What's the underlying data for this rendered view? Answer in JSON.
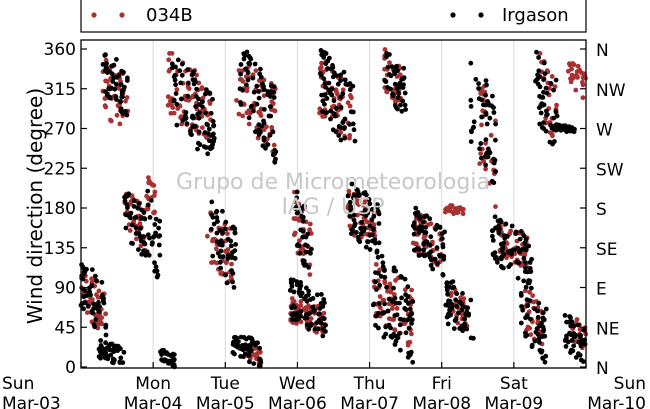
{
  "chart_data": {
    "type": "scatter",
    "ylabel": "Wind direction (degree)",
    "xlabel": "",
    "ylim": [
      0,
      365
    ],
    "yticks": [
      0,
      45,
      90,
      135,
      180,
      225,
      270,
      315,
      360
    ],
    "right_tick_labels": [
      "N",
      "NE",
      "E",
      "SE",
      "S",
      "SW",
      "W",
      "NW",
      "N"
    ],
    "x_tick_labels": [
      {
        "day": "Sun",
        "date": "Mar-03"
      },
      {
        "day": "Mon",
        "date": "Mar-04"
      },
      {
        "day": "Tue",
        "date": "Mar-05"
      },
      {
        "day": "Wed",
        "date": "Mar-06"
      },
      {
        "day": "Thu",
        "date": "Mar-07"
      },
      {
        "day": "Fri",
        "date": "Mar-08"
      },
      {
        "day": "Sat",
        "date": "Mar-09"
      },
      {
        "day": "Sun",
        "date": "Mar-10"
      }
    ],
    "xlim_days": [
      0,
      7
    ],
    "grid": "vertical",
    "legend_placement": "top",
    "watermark": [
      "Grupo de Micrometeorologia",
      "IAG / USP"
    ],
    "series": [
      {
        "name": "034B",
        "color": "#a83232",
        "clusters": [
          {
            "x": [
              0.0,
              0.35
            ],
            "y": [
              35,
              110
            ]
          },
          {
            "x": [
              0.3,
              0.65
            ],
            "y": [
              255,
              355
            ]
          },
          {
            "x": [
              0.6,
              0.9
            ],
            "y": [
              130,
              200
            ]
          },
          {
            "x": [
              0.9,
              1.05
            ],
            "y": [
              160,
              220
            ]
          },
          {
            "x": [
              1.2,
              1.8
            ],
            "y": [
              250,
              355
            ]
          },
          {
            "x": [
              1.75,
              2.1
            ],
            "y": [
              90,
              185
            ]
          },
          {
            "x": [
              2.15,
              2.7
            ],
            "y": [
              240,
              350
            ]
          },
          {
            "x": [
              2.3,
              2.5
            ],
            "y": [
              0,
              30
            ]
          },
          {
            "x": [
              2.95,
              3.2
            ],
            "y": [
              100,
              200
            ]
          },
          {
            "x": [
              2.9,
              3.4
            ],
            "y": [
              35,
              80
            ]
          },
          {
            "x": [
              3.3,
              3.75
            ],
            "y": [
              250,
              350
            ]
          },
          {
            "x": [
              3.7,
              4.1
            ],
            "y": [
              130,
              200
            ]
          },
          {
            "x": [
              4.05,
              4.6
            ],
            "y": [
              20,
              120
            ]
          },
          {
            "x": [
              4.2,
              4.45
            ],
            "y": [
              290,
              360
            ]
          },
          {
            "x": [
              4.6,
              5.0
            ],
            "y": [
              110,
              175
            ]
          },
          {
            "x": [
              5.1,
              5.35
            ],
            "y": [
              40,
              95
            ]
          },
          {
            "x": [
              5.05,
              5.3
            ],
            "y": [
              170,
              185
            ]
          },
          {
            "x": [
              5.5,
              5.75
            ],
            "y": [
              180,
              340
            ]
          },
          {
            "x": [
              5.75,
              6.2
            ],
            "y": [
              110,
              165
            ]
          },
          {
            "x": [
              6.15,
              6.4
            ],
            "y": [
              20,
              90
            ]
          },
          {
            "x": [
              6.35,
              6.6
            ],
            "y": [
              250,
              355
            ]
          },
          {
            "x": [
              6.8,
              7.0
            ],
            "y": [
              10,
              60
            ]
          },
          {
            "x": [
              6.75,
              7.0
            ],
            "y": [
              300,
              350
            ]
          }
        ]
      },
      {
        "name": "Irgason",
        "color": "#000000",
        "clusters": [
          {
            "x": [
              0.0,
              0.35
            ],
            "y": [
              30,
              120
            ]
          },
          {
            "x": [
              0.3,
              0.65
            ],
            "y": [
              280,
              360
            ]
          },
          {
            "x": [
              0.25,
              0.6
            ],
            "y": [
              0,
              30
            ]
          },
          {
            "x": [
              0.6,
              0.9
            ],
            "y": [
              120,
              200
            ]
          },
          {
            "x": [
              0.9,
              1.1
            ],
            "y": [
              90,
              200
            ]
          },
          {
            "x": [
              1.1,
              1.3
            ],
            "y": [
              0,
              20
            ]
          },
          {
            "x": [
              1.25,
              1.85
            ],
            "y": [
              230,
              350
            ]
          },
          {
            "x": [
              1.8,
              2.15
            ],
            "y": [
              80,
              190
            ]
          },
          {
            "x": [
              2.2,
              2.7
            ],
            "y": [
              230,
              360
            ]
          },
          {
            "x": [
              2.1,
              2.5
            ],
            "y": [
              0,
              40
            ]
          },
          {
            "x": [
              2.95,
              3.2
            ],
            "y": [
              100,
              200
            ]
          },
          {
            "x": [
              2.9,
              3.4
            ],
            "y": [
              30,
              100
            ]
          },
          {
            "x": [
              3.3,
              3.8
            ],
            "y": [
              240,
              360
            ]
          },
          {
            "x": [
              3.7,
              4.15
            ],
            "y": [
              120,
              210
            ]
          },
          {
            "x": [
              4.05,
              4.6
            ],
            "y": [
              0,
              130
            ]
          },
          {
            "x": [
              4.2,
              4.5
            ],
            "y": [
              280,
              360
            ]
          },
          {
            "x": [
              4.6,
              5.05
            ],
            "y": [
              100,
              180
            ]
          },
          {
            "x": [
              5.05,
              5.45
            ],
            "y": [
              25,
              100
            ]
          },
          {
            "x": [
              5.4,
              5.75
            ],
            "y": [
              200,
              350
            ]
          },
          {
            "x": [
              5.7,
              6.25
            ],
            "y": [
              90,
              170
            ]
          },
          {
            "x": [
              6.1,
              6.45
            ],
            "y": [
              0,
              100
            ]
          },
          {
            "x": [
              6.3,
              6.6
            ],
            "y": [
              240,
              360
            ]
          },
          {
            "x": [
              6.55,
              6.85
            ],
            "y": [
              265,
              275
            ]
          },
          {
            "x": [
              6.7,
              7.0
            ],
            "y": [
              0,
              60
            ]
          }
        ]
      }
    ]
  }
}
